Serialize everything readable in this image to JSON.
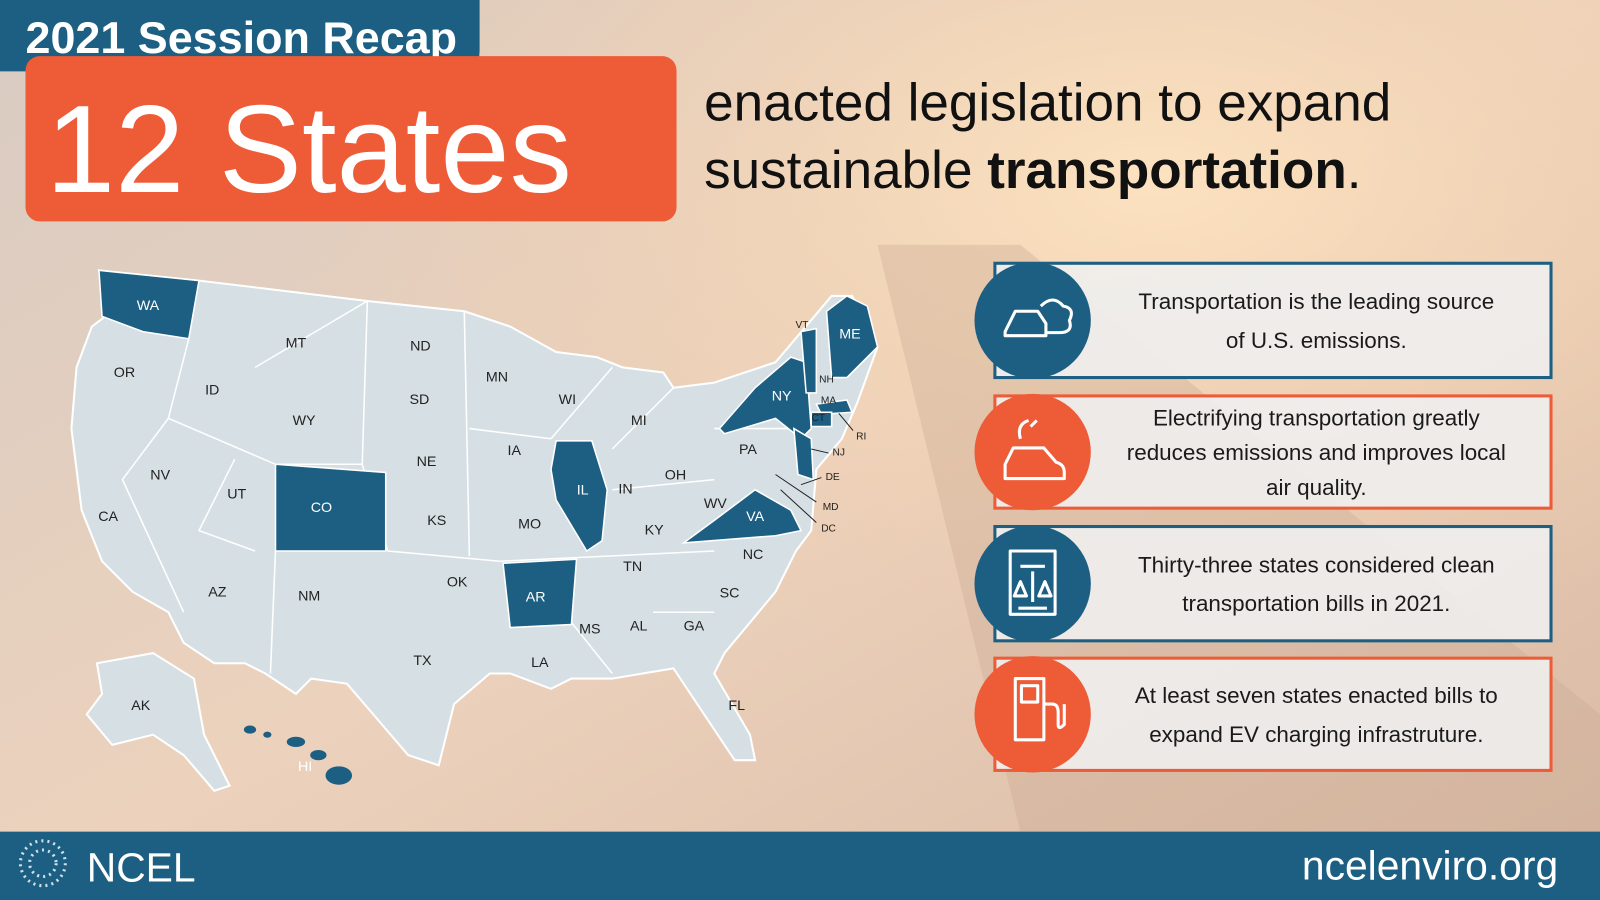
{
  "header": {
    "badge": "2021 Session Recap",
    "number": "12 States",
    "text": "enacted legislation to expand",
    "text2": "sustainable ",
    "bold": "transportation",
    "end": "."
  },
  "map": {
    "states": [
      {
        "abbr": "WA",
        "enacted": true
      },
      {
        "abbr": "MT",
        "enacted": false
      },
      {
        "abbr": "ND",
        "enacted": false
      },
      {
        "abbr": "MN",
        "enacted": false
      },
      {
        "abbr": "OR",
        "enacted": false
      },
      {
        "abbr": "ID",
        "enacted": false
      },
      {
        "abbr": "SD",
        "enacted": false
      },
      {
        "abbr": "WI",
        "enacted": false
      },
      {
        "abbr": "MI",
        "enacted": false
      },
      {
        "abbr": "WY",
        "enacted": false
      },
      {
        "abbr": "NE",
        "enacted": false
      },
      {
        "abbr": "IA",
        "enacted": false
      },
      {
        "abbr": "PA",
        "enacted": false
      },
      {
        "abbr": "NV",
        "enacted": false
      },
      {
        "abbr": "UT",
        "enacted": false
      },
      {
        "abbr": "CO",
        "enacted": true
      },
      {
        "abbr": "IL",
        "enacted": true
      },
      {
        "abbr": "IN",
        "enacted": false
      },
      {
        "abbr": "OH",
        "enacted": false
      },
      {
        "abbr": "KS",
        "enacted": false
      },
      {
        "abbr": "MO",
        "enacted": false
      },
      {
        "abbr": "WV",
        "enacted": false
      },
      {
        "abbr": "VA",
        "enacted": true
      },
      {
        "abbr": "KY",
        "enacted": false
      },
      {
        "abbr": "CA",
        "enacted": false
      },
      {
        "abbr": "NC",
        "enacted": false
      },
      {
        "abbr": "TN",
        "enacted": false
      },
      {
        "abbr": "OK",
        "enacted": false
      },
      {
        "abbr": "AR",
        "enacted": true
      },
      {
        "abbr": "AZ",
        "enacted": false
      },
      {
        "abbr": "NM",
        "enacted": false
      },
      {
        "abbr": "SC",
        "enacted": false
      },
      {
        "abbr": "GA",
        "enacted": false
      },
      {
        "abbr": "AL",
        "enacted": false
      },
      {
        "abbr": "MS",
        "enacted": false
      },
      {
        "abbr": "TX",
        "enacted": false
      },
      {
        "abbr": "LA",
        "enacted": false
      },
      {
        "abbr": "FL",
        "enacted": false
      },
      {
        "abbr": "AK",
        "enacted": false
      },
      {
        "abbr": "HI",
        "enacted": true
      },
      {
        "abbr": "NY",
        "enacted": true
      },
      {
        "abbr": "VT",
        "enacted": true
      },
      {
        "abbr": "ME",
        "enacted": true
      },
      {
        "abbr": "NH",
        "enacted": false
      },
      {
        "abbr": "MA",
        "enacted": true
      },
      {
        "abbr": "CT",
        "enacted": true
      },
      {
        "abbr": "RI",
        "enacted": false
      },
      {
        "abbr": "NJ",
        "enacted": true
      },
      {
        "abbr": "DE",
        "enacted": false
      },
      {
        "abbr": "MD",
        "enacted": false
      },
      {
        "abbr": "DC",
        "enacted": false
      }
    ]
  },
  "facts": [
    {
      "lines": [
        "Transportation is the leading source",
        "of U.S. emissions."
      ]
    },
    {
      "lines": [
        "Electrifying transportation greatly",
        "reduces emissions and improves local",
        "air quality."
      ]
    },
    {
      "lines": [
        "Thirty-three states considered clean",
        "transportation bills in 2021."
      ]
    },
    {
      "lines": [
        "At least seven states enacted bills to",
        "expand EV charging infrastruture."
      ]
    }
  ],
  "footer": {
    "brand": "NCEL",
    "url": "ncelenviro.org"
  }
}
